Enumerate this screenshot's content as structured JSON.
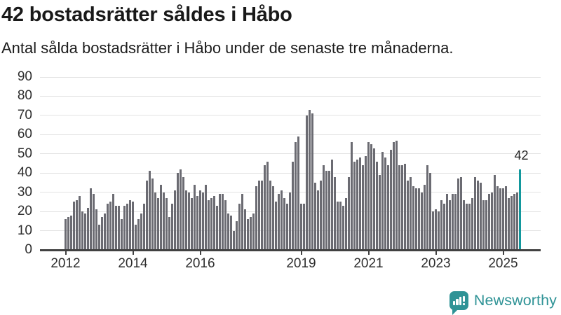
{
  "header": {
    "title": "42 bostadsrätter såldes i Håbo",
    "subtitle": "Antal sålda bostadsrätter i Håbo under de senaste tre månaderna."
  },
  "chart_data": {
    "type": "bar",
    "title": "42 bostadsrätter såldes i Håbo",
    "subtitle": "Antal sålda bostadsrätter i Håbo under de senaste tre månaderna.",
    "ylim": [
      0,
      90
    ],
    "yticks": [
      0,
      10,
      20,
      30,
      40,
      50,
      60,
      70,
      80,
      90
    ],
    "grid": true,
    "legend": "none",
    "bar_color": "#6b6b72",
    "grid_color": "#e2e2e2",
    "axis_color": "#414141",
    "xticks": [
      {
        "label": "2012",
        "month_index": 0
      },
      {
        "label": "2014",
        "month_index": 24
      },
      {
        "label": "2016",
        "month_index": 48
      },
      {
        "label": "2019",
        "month_index": 84
      },
      {
        "label": "2021",
        "month_index": 108
      },
      {
        "label": "2023",
        "month_index": 132
      },
      {
        "label": "2025",
        "month_index": 156
      }
    ],
    "values": [
      16,
      17,
      18,
      25,
      26,
      28,
      20,
      19,
      22,
      32,
      29,
      21,
      13,
      17,
      19,
      24,
      25,
      29,
      23,
      23,
      16,
      23,
      24,
      26,
      25,
      13,
      16,
      19,
      24,
      36,
      41,
      37,
      30,
      27,
      34,
      30,
      27,
      17,
      24,
      31,
      40,
      42,
      38,
      31,
      30,
      27,
      34,
      28,
      31,
      30,
      34,
      26,
      27,
      28,
      23,
      29,
      29,
      26,
      19,
      18,
      10,
      15,
      24,
      29,
      21,
      16,
      17,
      19,
      33,
      36,
      36,
      44,
      46,
      36,
      33,
      25,
      29,
      31,
      27,
      24,
      30,
      46,
      56,
      59,
      24,
      24,
      70,
      73,
      71,
      35,
      31,
      36,
      44,
      41,
      41,
      47,
      38,
      25,
      25,
      23,
      27,
      38,
      56,
      46,
      47,
      48,
      44,
      49,
      56,
      55,
      53,
      46,
      39,
      51,
      48,
      44,
      52,
      56,
      57,
      44,
      44,
      45,
      36,
      38,
      33,
      32,
      32,
      30,
      34,
      44,
      40,
      20,
      21,
      20,
      26,
      24,
      29,
      26,
      29,
      29,
      37,
      38,
      26,
      24,
      24,
      27,
      38,
      36,
      35,
      26,
      26,
      29,
      30,
      39,
      33,
      32,
      32,
      33,
      27,
      28,
      29,
      30,
      42
    ],
    "highlight_last": {
      "value": 42,
      "label": "42",
      "color": "#12989d"
    }
  },
  "branding": {
    "name": "Newsworthy",
    "color": "#2f9396",
    "icon": "newsworthy-speech-bubble-chart-icon"
  }
}
